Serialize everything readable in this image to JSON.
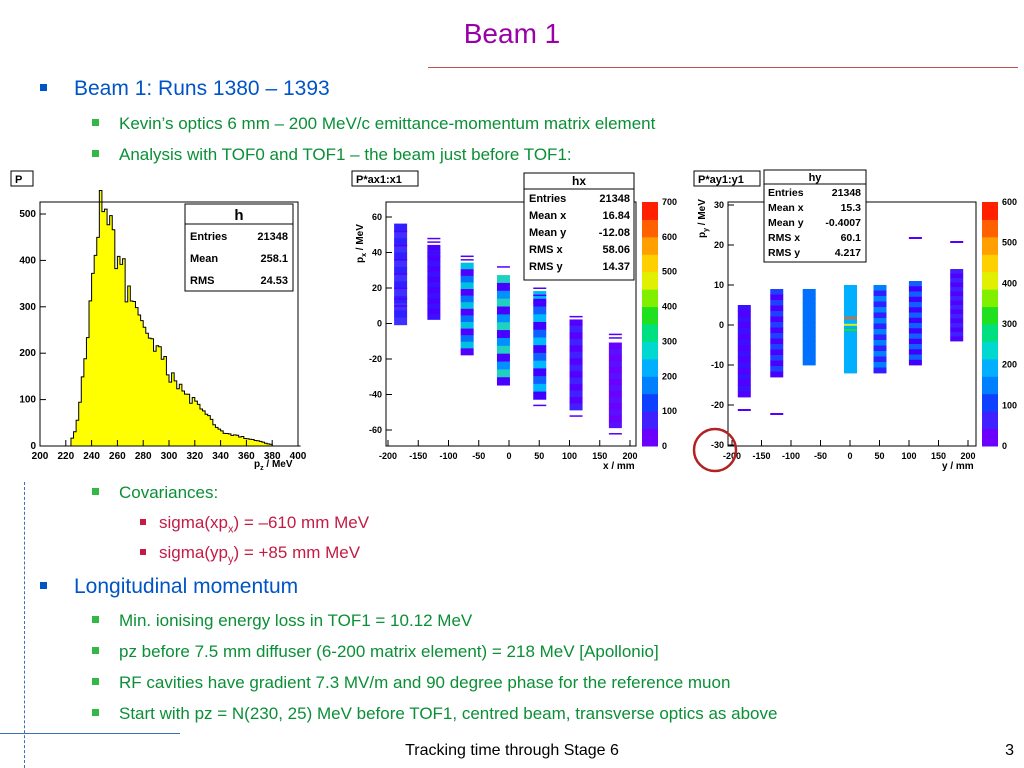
{
  "slide": {
    "title": "Beam 1",
    "footer": "Tracking time through Stage 6",
    "page_number": "3"
  },
  "bullets": {
    "b1": "Beam 1: Runs 1380 – 1393",
    "b1_1": "Kevin’s optics 6 mm – 200 MeV/c emittance-momentum matrix element",
    "b1_2": "Analysis with TOF0 and TOF1 – the beam just before TOF1:",
    "cov": "Covariances:",
    "cov_xp_pre": "sigma(xp",
    "cov_xp_sub": "x",
    "cov_xp_post": ") = –610 mm MeV",
    "cov_yp_pre": "sigma(yp",
    "cov_yp_sub": "y",
    "cov_yp_post": ") = +85 mm MeV",
    "long": "Longitudinal momentum",
    "long_1": "Min. ionising energy loss in TOF1 = 10.12 MeV",
    "long_2": "pz before 7.5 mm diffuser (6-200 matrix element) = 218 MeV [Apollonio]",
    "long_3": "RF cavities have gradient 7.3 MV/m and 90 degree phase for the reference muon",
    "long_4": "Start with pz = N(230, 25) MeV before TOF1, centred beam, transverse optics as above"
  },
  "colors": {
    "title": "#9900a8",
    "level1": "#0054c8",
    "level2": "#0a8f36",
    "level3": "#c41b44",
    "histogram_fill": "#ffff00",
    "highlight_circle": "#b22222"
  },
  "plots": {
    "p": {
      "tag": "P",
      "stats_title": "h",
      "stats": [
        [
          "Entries",
          "21348"
        ],
        [
          "Mean",
          "258.1"
        ],
        [
          "RMS",
          "24.53"
        ]
      ],
      "xlabel_main": "p",
      "xlabel_sub": "z",
      "xlabel_unit": " / MeV",
      "xticks": [
        "200",
        "220",
        "240",
        "260",
        "280",
        "300",
        "320",
        "340",
        "360",
        "380",
        "400"
      ],
      "yticks": [
        "0",
        "100",
        "200",
        "300",
        "400",
        "500"
      ]
    },
    "px": {
      "tag": "P*ax1:x1",
      "stats_title": "hx",
      "stats": [
        [
          "Entries",
          "21348"
        ],
        [
          "Mean x",
          "16.84"
        ],
        [
          "Mean y",
          "-12.08"
        ],
        [
          "RMS x",
          "58.06"
        ],
        [
          "RMS y",
          "14.37"
        ]
      ],
      "xlabel": "x / mm",
      "ylabel_main": "p",
      "ylabel_sub": "x",
      "ylabel_unit": " / MeV",
      "xticks": [
        "-200",
        "-150",
        "-100",
        "-50",
        "0",
        "50",
        "100",
        "150",
        "200"
      ],
      "yticks": [
        "-60",
        "-40",
        "-20",
        "0",
        "20",
        "40",
        "60"
      ],
      "zticks": [
        "0",
        "100",
        "200",
        "300",
        "400",
        "500",
        "600",
        "700"
      ]
    },
    "py": {
      "tag": "P*ay1:y1",
      "stats_title": "hy",
      "stats": [
        [
          "Entries",
          "21348"
        ],
        [
          "Mean x",
          "15.3"
        ],
        [
          "Mean y",
          "-0.4007"
        ],
        [
          "RMS x",
          "60.1"
        ],
        [
          "RMS y",
          "4.217"
        ]
      ],
      "xlabel": "y / mm",
      "ylabel_main": "p",
      "ylabel_sub": "y",
      "ylabel_unit": " / MeV",
      "xticks": [
        "-200",
        "-150",
        "-100",
        "-50",
        "0",
        "50",
        "100",
        "150",
        "200"
      ],
      "yticks": [
        "-30",
        "-20",
        "-10",
        "0",
        "10",
        "20",
        "30"
      ],
      "zticks": [
        "0",
        "100",
        "200",
        "300",
        "400",
        "500",
        "600"
      ]
    }
  }
}
